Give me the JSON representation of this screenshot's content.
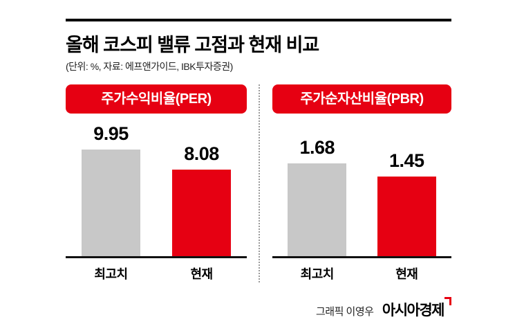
{
  "header": {
    "title": "올해 코스피 밸류 고점과 현재 비교",
    "subtitle": "(단위: %, 자료: 에프앤가이드, IBK투자증권)"
  },
  "footer": {
    "credit": "그래픽 이영우",
    "brand": "아시아경제"
  },
  "colors": {
    "accent_red": "#e60012",
    "bar_gray": "#c8c8c8",
    "ink": "#000000",
    "divider_gray": "#9a9a9a"
  },
  "chart_data": [
    {
      "type": "bar",
      "title": "주가수익비율(PER)",
      "categories": [
        "최고치",
        "현재"
      ],
      "values": [
        9.95,
        8.08
      ],
      "bar_colors": [
        "#c8c8c8",
        "#e60012"
      ],
      "ylim": [
        0,
        10
      ],
      "grid": false,
      "legend": "none"
    },
    {
      "type": "bar",
      "title": "주가순자산비율(PBR)",
      "categories": [
        "최고치",
        "현재"
      ],
      "values": [
        1.68,
        1.45
      ],
      "bar_colors": [
        "#c8c8c8",
        "#e60012"
      ],
      "ylim": [
        0,
        1.95
      ],
      "grid": false,
      "legend": "none"
    }
  ]
}
